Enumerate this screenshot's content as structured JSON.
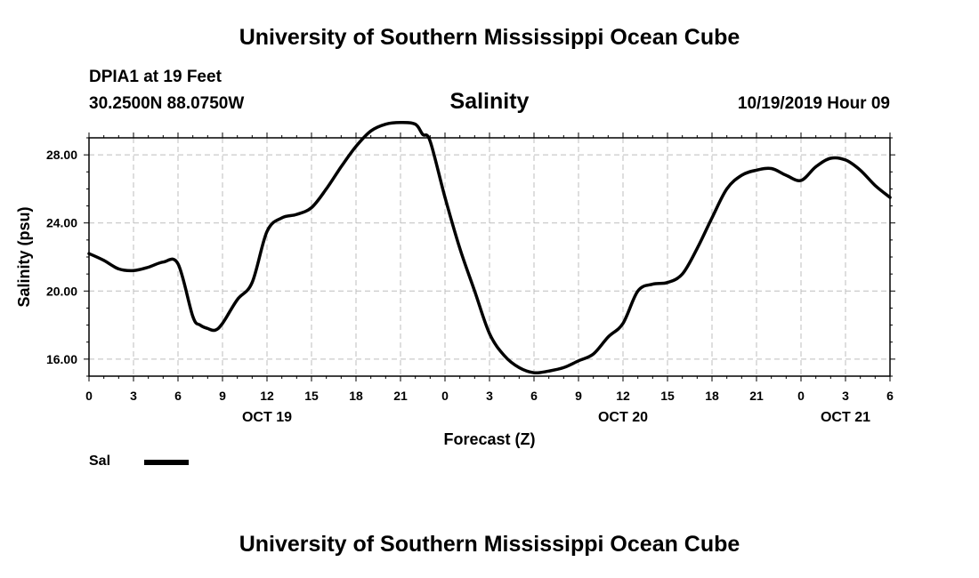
{
  "header": {
    "title": "University of Southern Mississippi Ocean Cube",
    "station": "DPIA1 at 19 Feet",
    "coords": "30.2500N 88.0750W",
    "datetime": "10/19/2019 Hour 09"
  },
  "footer": {
    "title": "University of Southern Mississippi Ocean Cube"
  },
  "legend": {
    "label": "Sal"
  },
  "chart_data": {
    "type": "line",
    "title": "Salinity",
    "xlabel": "Forecast (Z)",
    "ylabel": "Salinity (psu)",
    "xlim": [
      0,
      54
    ],
    "ylim": [
      15,
      29
    ],
    "grid": true,
    "legend_position": "bottom-left",
    "line_color": "#000000",
    "x_tick_values": [
      0,
      3,
      6,
      9,
      12,
      15,
      18,
      21,
      24,
      27,
      30,
      33,
      36,
      39,
      42,
      45,
      48,
      51,
      54
    ],
    "x_tick_labels": [
      "0",
      "3",
      "6",
      "9",
      "12",
      "15",
      "18",
      "21",
      "0",
      "3",
      "6",
      "9",
      "12",
      "15",
      "18",
      "21",
      "0",
      "3",
      "6"
    ],
    "y_tick_values": [
      16,
      20,
      24,
      28
    ],
    "y_tick_labels": [
      "16.00",
      "20.00",
      "24.00",
      "28.00"
    ],
    "date_labels": [
      {
        "x": 12,
        "label": "OCT 19"
      },
      {
        "x": 36,
        "label": "OCT 20"
      },
      {
        "x": 51,
        "label": "OCT 21"
      }
    ],
    "series": [
      {
        "name": "Sal",
        "x": [
          0,
          1,
          2,
          3,
          4,
          5,
          6,
          7,
          7.5,
          8,
          8.5,
          9,
          10,
          11,
          12,
          13,
          14,
          15,
          16,
          17,
          18,
          19,
          20,
          21,
          22,
          22.5,
          23,
          24,
          25,
          26,
          27,
          28,
          29,
          30,
          31,
          32,
          33,
          34,
          35,
          36,
          37,
          38,
          39,
          40,
          41,
          42,
          43,
          44,
          45,
          46,
          47,
          48,
          49,
          50,
          51,
          52,
          53,
          54
        ],
        "y": [
          22.2,
          21.8,
          21.3,
          21.2,
          21.4,
          21.7,
          21.6,
          18.5,
          18.0,
          17.8,
          17.7,
          18.1,
          19.5,
          20.5,
          23.5,
          24.3,
          24.5,
          24.9,
          26.0,
          27.3,
          28.5,
          29.4,
          29.8,
          29.9,
          29.8,
          29.2,
          28.8,
          25.5,
          22.5,
          20.0,
          17.5,
          16.2,
          15.5,
          15.2,
          15.3,
          15.5,
          15.9,
          16.3,
          17.3,
          18.1,
          20.0,
          20.4,
          20.5,
          21.0,
          22.5,
          24.3,
          26.0,
          26.8,
          27.1,
          27.2,
          26.8,
          26.5,
          27.3,
          27.8,
          27.7,
          27.1,
          26.2,
          25.5
        ]
      }
    ]
  }
}
